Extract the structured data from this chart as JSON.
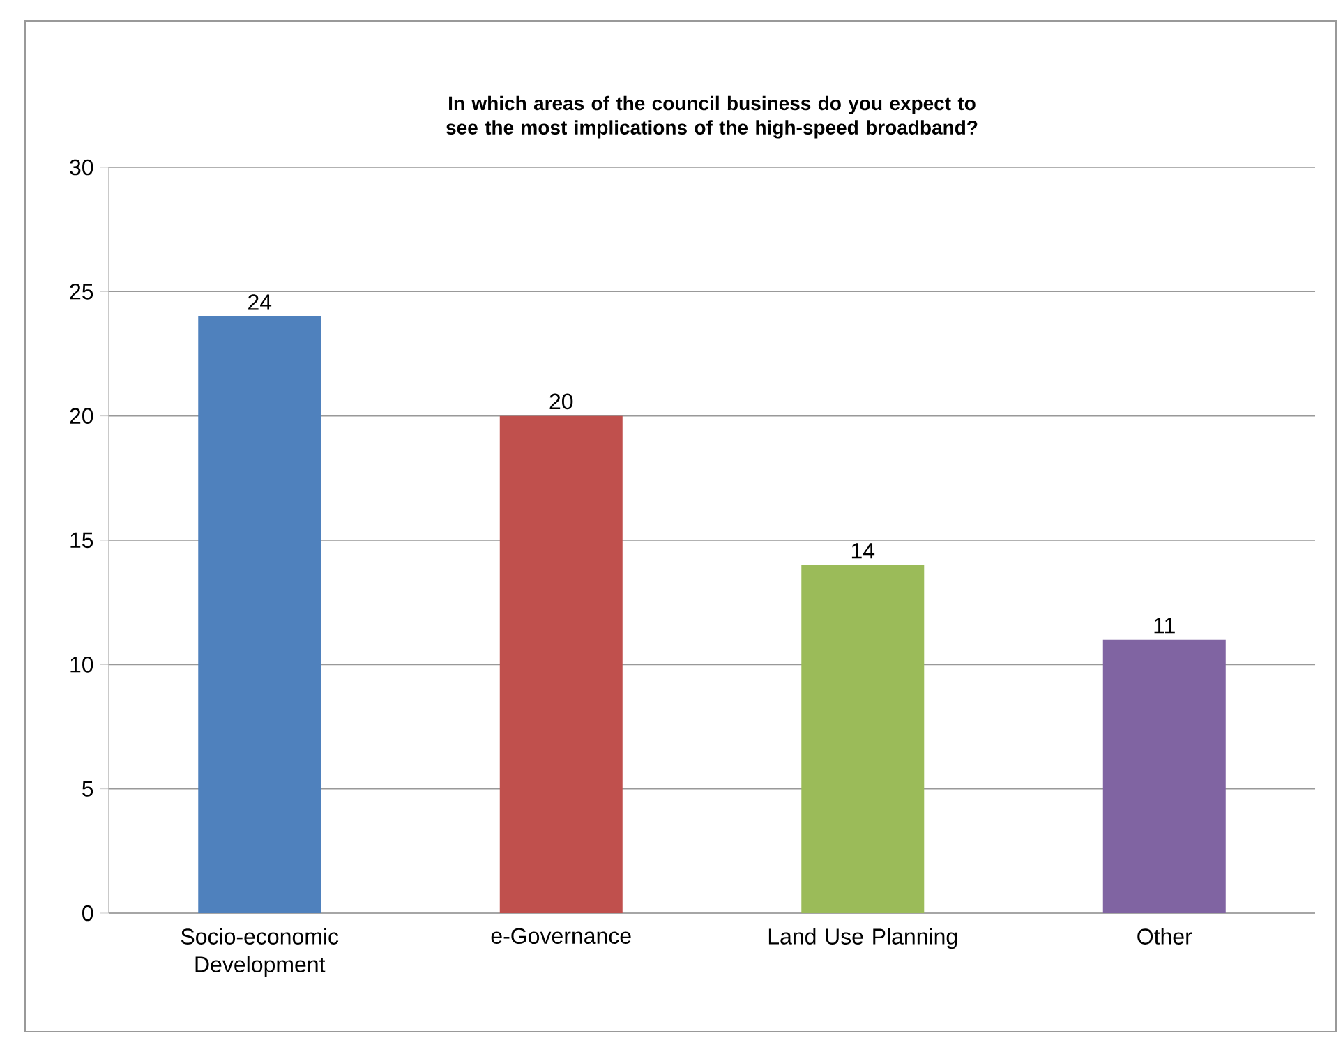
{
  "chart_data": {
    "type": "bar",
    "title": "In which areas of the council business do you expect to see the most implications of the high-speed broadband?",
    "categories": [
      "Socio-economic Development",
      "e-Governance",
      "Land Use Planning",
      "Other"
    ],
    "values": [
      24,
      20,
      14,
      11
    ],
    "colors": [
      "#4f81bd",
      "#c0504d",
      "#9bbb59",
      "#8064a2"
    ],
    "ylim": [
      0,
      30
    ],
    "yticks": [
      0,
      5,
      10,
      15,
      20,
      25,
      30
    ],
    "grid": "y",
    "data_labels": true
  }
}
